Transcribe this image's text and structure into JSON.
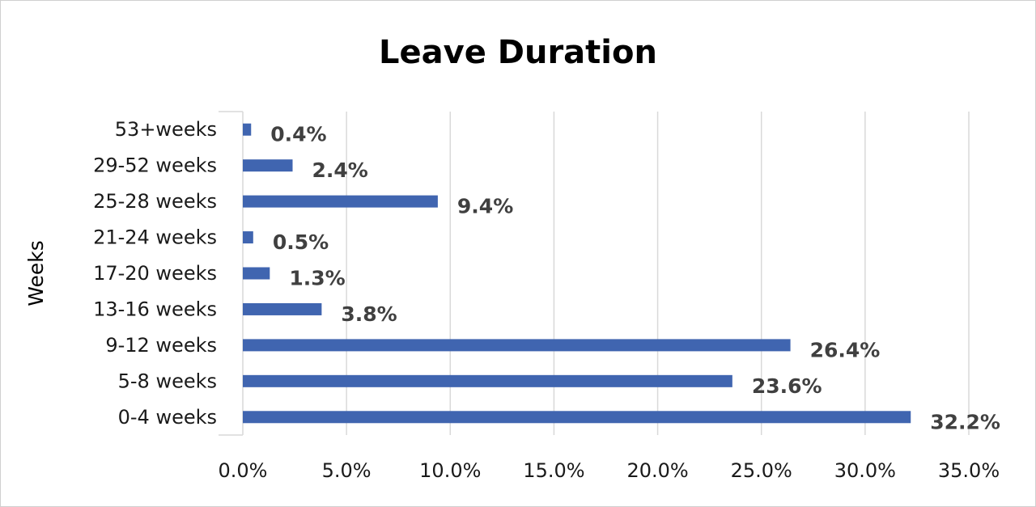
{
  "chart_data": {
    "type": "bar",
    "orientation": "horizontal",
    "title": "Leave Duration",
    "ylabel": "Weeks",
    "xlabel": "",
    "categories": [
      "0-4 weeks",
      "5-8 weeks",
      "9-12 weeks",
      "13-16 weeks",
      "17-20 weeks",
      "21-24 weeks",
      "25-28 weeks",
      "29-52 weeks",
      "53+weeks"
    ],
    "values": [
      32.2,
      23.6,
      26.4,
      3.8,
      1.3,
      0.5,
      9.4,
      2.4,
      0.4
    ],
    "data_labels": [
      "32.2%",
      "23.6%",
      "26.4%",
      "3.8%",
      "1.3%",
      "0.5%",
      "9.4%",
      "2.4%",
      "0.4%"
    ],
    "xlim": [
      0,
      35
    ],
    "xticks": [
      0,
      5,
      10,
      15,
      20,
      25,
      30,
      35
    ],
    "xtick_labels": [
      "0.0%",
      "5.0%",
      "10.0%",
      "15.0%",
      "20.0%",
      "25.0%",
      "30.0%",
      "35.0%"
    ],
    "grid": "vertical",
    "legend": "none",
    "bar_color": "#4065B0",
    "gridline_color": "#D9D9D9"
  }
}
